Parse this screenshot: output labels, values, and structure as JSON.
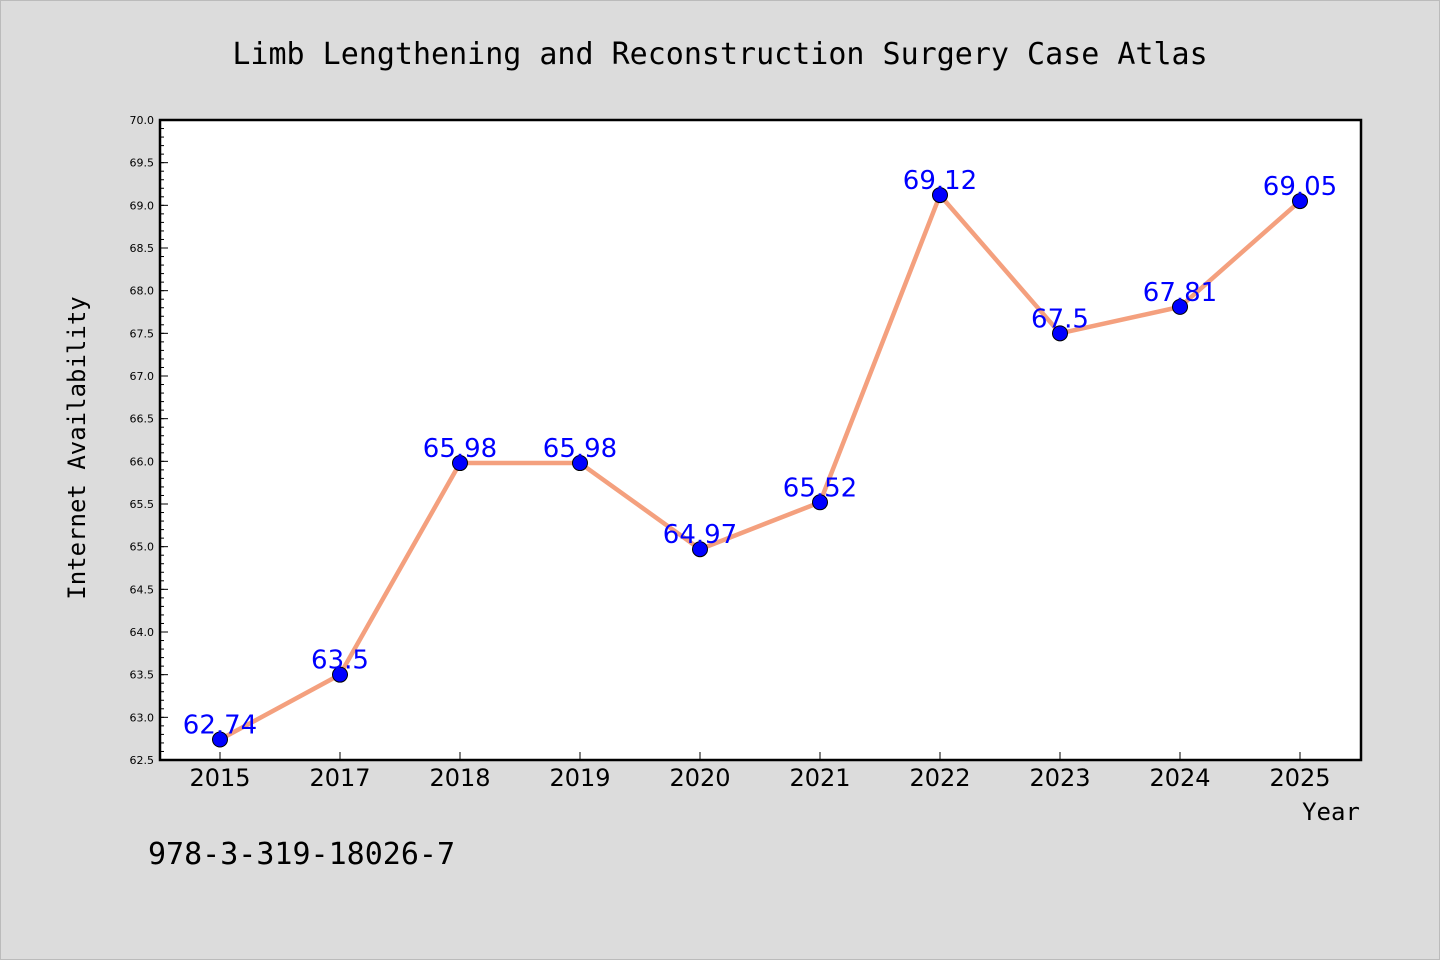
{
  "chart_data": {
    "type": "line",
    "title": "Limb Lengthening and Reconstruction Surgery Case Atlas",
    "xlabel": "Year",
    "ylabel": "Internet Availability",
    "categories": [
      "2015",
      "2017",
      "2018",
      "2019",
      "2020",
      "2021",
      "2022",
      "2023",
      "2024",
      "2025"
    ],
    "values": [
      62.74,
      63.5,
      65.98,
      65.98,
      64.97,
      65.52,
      69.12,
      67.5,
      67.81,
      69.05
    ],
    "data_labels": [
      "62.74",
      "63.5",
      "65.98",
      "65.98",
      "64.97",
      "65.52",
      "69.12",
      "67.5",
      "67.81",
      "69.05"
    ],
    "ylim": [
      62.5,
      70.0
    ],
    "yticks": [
      "62.5",
      "63.0",
      "63.5",
      "64.0",
      "64.5",
      "65.0",
      "65.5",
      "66.0",
      "66.5",
      "67.0",
      "67.5",
      "68.0",
      "68.5",
      "69.0",
      "69.5",
      "70.0"
    ],
    "grid": false,
    "line_color": "#f4a07e",
    "marker_color": "#0000ff",
    "label_color": "#0000ff"
  },
  "footer": {
    "isbn": "978-3-319-18026-7"
  }
}
